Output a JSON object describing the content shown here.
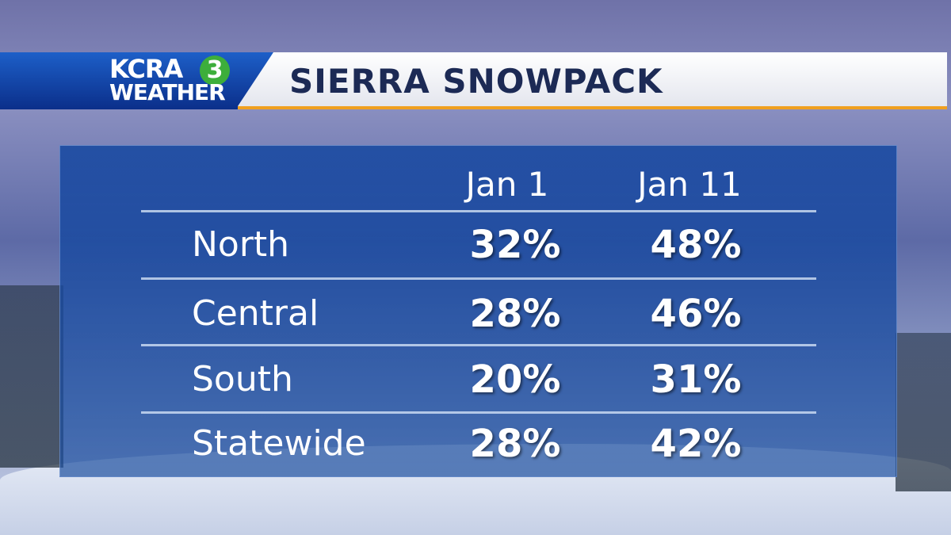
{
  "header": {
    "logo": {
      "station": "KCRA",
      "channel": "3",
      "brand": "WEATHER"
    },
    "title": "SIERRA SNOWPACK"
  },
  "table": {
    "columns": [
      "Jan 1",
      "Jan 11"
    ],
    "rows": [
      [
        "North",
        "32%",
        "48%"
      ],
      [
        "Central",
        "28%",
        "46%"
      ],
      [
        "South",
        "20%",
        "31%"
      ],
      [
        "Statewide",
        "28%",
        "42%"
      ]
    ]
  }
}
